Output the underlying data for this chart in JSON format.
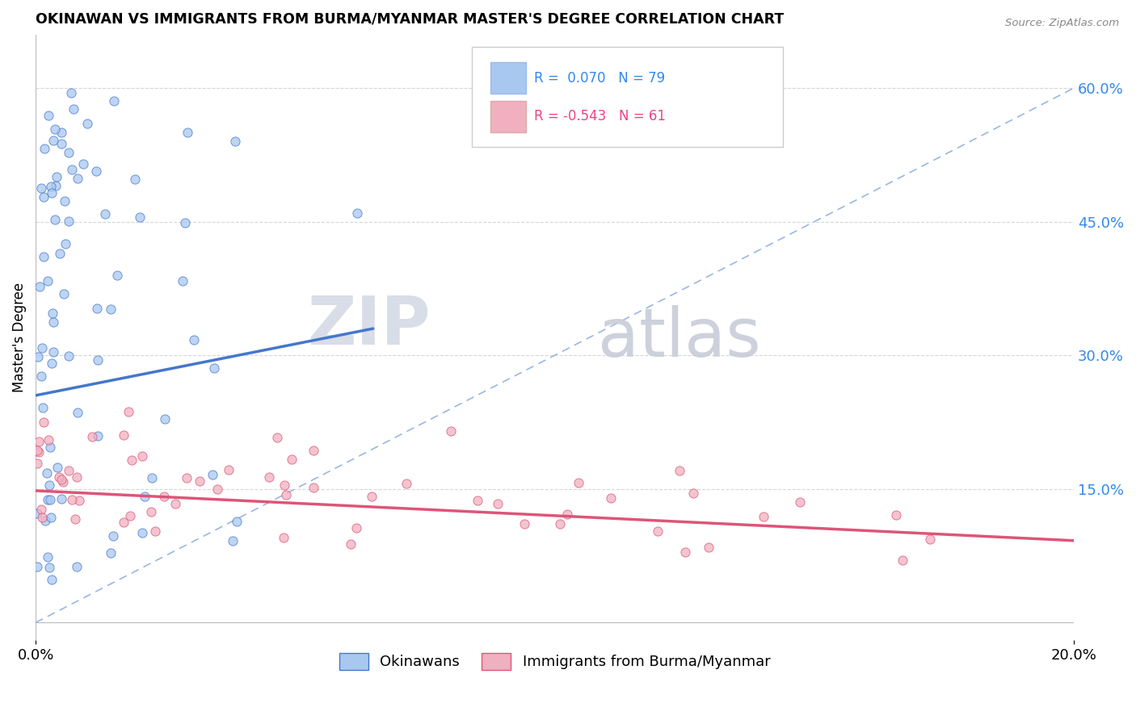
{
  "title": "OKINAWAN VS IMMIGRANTS FROM BURMA/MYANMAR MASTER'S DEGREE CORRELATION CHART",
  "source": "Source: ZipAtlas.com",
  "ylabel": "Master's Degree",
  "right_yticks": [
    "15.0%",
    "30.0%",
    "45.0%",
    "60.0%"
  ],
  "right_ytick_vals": [
    0.15,
    0.3,
    0.45,
    0.6
  ],
  "legend_entry1": "R =  0.070   N = 79",
  "legend_entry2": "R = -0.543   N = 61",
  "color_blue": "#a8c8f0",
  "color_pink": "#f0b0c0",
  "color_blue_line": "#4477cc",
  "color_pink_line": "#dd5577",
  "color_blue_text": "#3388ee",
  "color_pink_text": "#ee4488",
  "legend_label1": "Okinawans",
  "legend_label2": "Immigrants from Burma/Myanmar",
  "xmin": 0.0,
  "xmax": 0.2,
  "ymin": -0.02,
  "ymax": 0.66,
  "blue_trend_x": [
    0.0,
    0.065
  ],
  "blue_trend_y": [
    0.255,
    0.33
  ],
  "pink_trend_x": [
    0.0,
    0.2
  ],
  "pink_trend_y": [
    0.148,
    0.092
  ],
  "diag_line_x": [
    0.0,
    0.2
  ],
  "diag_line_y": [
    0.0,
    0.6
  ]
}
